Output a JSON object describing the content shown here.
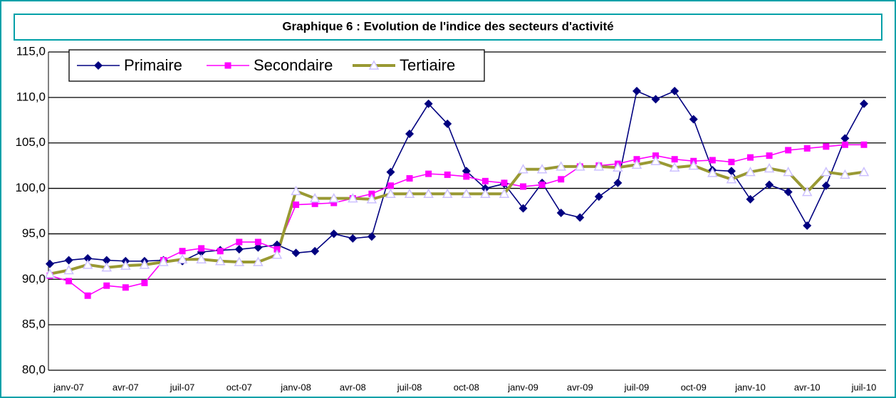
{
  "chart_data": {
    "type": "line",
    "title": "Graphique 6 : Evolution de l'indice des secteurs d'activité",
    "categories": [
      null,
      "janv-07",
      null,
      null,
      "avr-07",
      null,
      null,
      "juil-07",
      null,
      null,
      "oct-07",
      null,
      null,
      "janv-08",
      null,
      null,
      "avr-08",
      null,
      null,
      "juil-08",
      null,
      null,
      "oct-08",
      null,
      null,
      "janv-09",
      null,
      null,
      "avr-09",
      null,
      null,
      "juil-09",
      null,
      null,
      "oct-09",
      null,
      null,
      "janv-10",
      null,
      null,
      "avr-10",
      null,
      null,
      "juil-10"
    ],
    "series": [
      {
        "name": "Primaire",
        "color": "#000080",
        "marker": "diamond",
        "values": [
          91.7,
          92.1,
          92.3,
          92.1,
          92.0,
          92.0,
          92.1,
          92.0,
          93.0,
          93.2,
          93.3,
          93.5,
          93.8,
          92.9,
          93.1,
          95.0,
          94.5,
          94.7,
          101.8,
          106.0,
          109.3,
          107.1,
          101.9,
          100.0,
          100.5,
          97.8,
          100.6,
          97.3,
          96.8,
          99.1,
          100.6,
          110.7,
          109.8,
          110.7,
          107.6,
          102.0,
          101.9,
          98.8,
          100.4,
          99.6,
          95.9,
          100.3,
          105.5,
          109.3
        ]
      },
      {
        "name": "Secondaire",
        "color": "#ff00ff",
        "marker": "square",
        "values": [
          90.4,
          89.8,
          88.2,
          89.3,
          89.1,
          89.6,
          92.1,
          93.1,
          93.4,
          93.1,
          94.1,
          94.1,
          93.3,
          98.2,
          98.3,
          98.4,
          98.9,
          99.4,
          100.3,
          101.1,
          101.6,
          101.5,
          101.3,
          100.8,
          100.6,
          100.2,
          100.4,
          101.0,
          102.4,
          102.5,
          102.7,
          103.2,
          103.6,
          103.2,
          103.0,
          103.1,
          102.9,
          103.4,
          103.6,
          104.2,
          104.4,
          104.6,
          104.8,
          104.8
        ]
      },
      {
        "name": "Tertiaire",
        "color": "#999933",
        "marker_color": "#ccc0ff",
        "marker": "triangle",
        "values": [
          90.6,
          91.0,
          91.6,
          91.3,
          91.5,
          91.6,
          91.9,
          92.2,
          92.2,
          92.0,
          91.9,
          91.9,
          92.7,
          99.7,
          98.9,
          98.9,
          98.9,
          98.8,
          99.4,
          99.4,
          99.4,
          99.4,
          99.4,
          99.4,
          99.4,
          102.1,
          102.1,
          102.4,
          102.4,
          102.4,
          102.3,
          102.6,
          103.0,
          102.3,
          102.5,
          101.7,
          101.0,
          101.8,
          102.2,
          101.8,
          99.6,
          101.8,
          101.5,
          101.8
        ]
      }
    ],
    "ylim": [
      80,
      115
    ],
    "yticks": [
      {
        "value": 80,
        "label": "80,0"
      },
      {
        "value": 85,
        "label": "85,0"
      },
      {
        "value": 90,
        "label": "90,0"
      },
      {
        "value": 95,
        "label": "95,0"
      },
      {
        "value": 100,
        "label": "100,0"
      },
      {
        "value": 105,
        "label": "105,0"
      },
      {
        "value": 110,
        "label": "110,0"
      },
      {
        "value": 115,
        "label": "115,0"
      }
    ],
    "grid": true,
    "legend": "top-left"
  }
}
